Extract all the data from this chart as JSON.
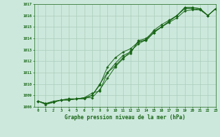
{
  "x": [
    0,
    1,
    2,
    3,
    4,
    5,
    6,
    7,
    8,
    9,
    10,
    11,
    12,
    13,
    14,
    15,
    16,
    17,
    18,
    19,
    20,
    21,
    22,
    23
  ],
  "line1": [
    1008.5,
    1008.3,
    1008.4,
    1008.6,
    1008.6,
    1008.7,
    1008.7,
    1009.0,
    1010.0,
    1011.0,
    1011.8,
    1012.5,
    1012.8,
    1013.7,
    1013.8,
    1014.5,
    1015.0,
    1015.5,
    1016.0,
    1016.6,
    1016.6,
    1016.5,
    1016.0,
    1016.6
  ],
  "line2": [
    1008.5,
    1008.3,
    1008.5,
    1008.6,
    1008.6,
    1008.7,
    1008.8,
    1009.0,
    1009.9,
    1011.5,
    1012.3,
    1012.8,
    1013.1,
    1013.7,
    1013.9,
    1014.7,
    1015.2,
    1015.6,
    1016.0,
    1016.7,
    1016.7,
    1016.6,
    1016.0,
    1016.6
  ],
  "line3": [
    1008.5,
    1008.3,
    1008.4,
    1008.6,
    1008.7,
    1008.7,
    1008.8,
    1009.2,
    1009.4,
    1011.0,
    1011.6,
    1012.3,
    1012.7,
    1013.8,
    1014.0,
    1014.6,
    1015.0,
    1015.5,
    1016.0,
    1016.7,
    1016.7,
    1016.6,
    1016.0,
    1016.6
  ],
  "line4": [
    1008.5,
    1008.2,
    1008.4,
    1008.6,
    1008.7,
    1008.7,
    1008.8,
    1008.8,
    1009.5,
    1010.5,
    1011.5,
    1012.2,
    1012.9,
    1013.5,
    1013.9,
    1014.5,
    1015.0,
    1015.4,
    1015.8,
    1016.4,
    1016.5,
    1016.5,
    1016.0,
    1016.6
  ],
  "ylim": [
    1008,
    1017
  ],
  "xlim": [
    -0.5,
    23
  ],
  "yticks": [
    1008,
    1009,
    1010,
    1011,
    1012,
    1013,
    1014,
    1015,
    1016,
    1017
  ],
  "xticks": [
    0,
    1,
    2,
    3,
    4,
    5,
    6,
    7,
    8,
    9,
    10,
    11,
    12,
    13,
    14,
    15,
    16,
    17,
    18,
    19,
    20,
    21,
    22,
    23
  ],
  "xlabel": "Graphe pression niveau de la mer (hPa)",
  "line_color": "#1a6618",
  "bg_color": "#cce8dc",
  "grid_color": "#aaccbb",
  "marker": "D",
  "marker_size": 1.8,
  "linewidth": 0.7
}
